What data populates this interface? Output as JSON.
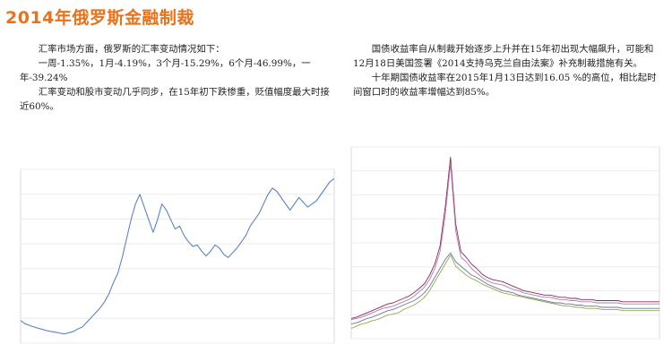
{
  "page": {
    "title": "2014年俄罗斯金融制裁"
  },
  "left_text": {
    "p1": "汇率市场方面，俄罗斯的汇率变动情况如下：",
    "p2": "一周-1.35%，1月-4.19%，3个月-15.29%，6个月-46.99%，一年-39.24%",
    "p3": "汇率变动和股市变动几乎同步，在15年初下跌惨重，贬值幅度最大时接近60%。"
  },
  "right_text": {
    "p1": "国债收益率自从制裁开始逐步上升并在15年初出现大幅飙升，可能和12月18日美国签署《2014支持乌克兰自由法案》补充制裁措施有关。",
    "p2": "十年期国债收益率在2015年1月13日达到16.05 %的高位，相比起时间窗口时的收益率增幅达到85%。"
  },
  "colors": {
    "title": "#e8731c",
    "fx_line": "#5b84c4",
    "bond_series_1": "#8b2a5a",
    "bond_series_2": "#b87ab0",
    "bond_series_3": "#9aa84a",
    "bond_series_4": "#6a7a9a"
  },
  "chart_data": [
    {
      "type": "line",
      "series": [
        {
          "values": [
            26,
            25,
            24.5,
            24,
            23.6,
            23.2,
            22.8,
            22.5,
            22.3,
            22.0,
            21.8,
            22.2,
            22.6,
            23.4,
            24.0,
            25.5,
            27.0,
            28.5,
            30.0,
            32.0,
            34.5,
            38.0,
            41.0,
            46.0,
            52.0,
            58.0,
            63.0,
            66.0,
            62.0,
            58.0,
            54.0,
            58.0,
            63.0,
            61.0,
            58.0,
            55.0,
            56.0,
            53.0,
            51.0,
            49.5,
            50.0,
            48.0,
            46.5,
            48.0,
            50.0,
            49.0,
            47.0,
            46.0,
            47.5,
            49.0,
            51.0,
            53.0,
            56.0,
            58.0,
            60.0,
            63.0,
            66.0,
            68.0,
            67.0,
            65.0,
            63.0,
            61.0,
            63.0,
            65.0,
            63.5,
            62.0,
            63.0,
            64.0,
            66.0,
            68.0,
            70.0,
            71.0
          ]
        }
      ]
    },
    {
      "type": "line",
      "series": [
        {
          "values": [
            7.5,
            7.6,
            7.8,
            8.0,
            8.2,
            8.4,
            8.6,
            8.8,
            8.9,
            9.1,
            9.3,
            9.5,
            9.8,
            10.2,
            10.6,
            11.4,
            12.4,
            14.0,
            17.5,
            22.0,
            16.0,
            13.5,
            13.0,
            12.4,
            12.0,
            11.5,
            11.2,
            11.0,
            10.9,
            10.8,
            10.6,
            10.4,
            10.2,
            10.0,
            9.9,
            9.8,
            9.7,
            9.6,
            9.6,
            9.5,
            9.4,
            9.4,
            9.3,
            9.3,
            9.2,
            9.2,
            9.2,
            9.1,
            9.1,
            9.1,
            9.1,
            9.1,
            9.0,
            9.0,
            9.0,
            9.0,
            9.0,
            9.0,
            9.0,
            9.0
          ]
        },
        {
          "values": [
            7.4,
            7.5,
            7.6,
            7.8,
            8.0,
            8.2,
            8.4,
            8.5,
            8.6,
            8.8,
            9.0,
            9.2,
            9.5,
            9.9,
            10.3,
            11.0,
            12.0,
            13.5,
            16.8,
            21.4,
            15.4,
            13.0,
            12.6,
            12.0,
            11.6,
            11.2,
            10.9,
            10.7,
            10.6,
            10.5,
            10.3,
            10.1,
            10.0,
            9.8,
            9.7,
            9.6,
            9.5,
            9.4,
            9.4,
            9.3,
            9.2,
            9.2,
            9.1,
            9.1,
            9.0,
            9.0,
            9.0,
            8.9,
            8.9,
            8.9,
            8.9,
            8.9,
            8.8,
            8.8,
            8.8,
            8.8,
            8.8,
            8.8,
            8.8,
            8.8
          ]
        },
        {
          "values": [
            6.6,
            6.8,
            7.0,
            7.1,
            7.3,
            7.4,
            7.6,
            7.8,
            7.9,
            8.0,
            8.3,
            8.5,
            8.7,
            9.0,
            9.4,
            10.0,
            10.8,
            11.6,
            12.4,
            13.2,
            12.2,
            11.8,
            11.4,
            11.1,
            10.9,
            10.6,
            10.4,
            10.2,
            10.0,
            9.8,
            9.7,
            9.6,
            9.5,
            9.4,
            9.3,
            9.2,
            9.1,
            9.0,
            8.9,
            8.8,
            8.7,
            8.6,
            8.6,
            8.5,
            8.5,
            8.4,
            8.4,
            8.4,
            8.3,
            8.3,
            8.3,
            8.3,
            8.2,
            8.2,
            8.2,
            8.2,
            8.2,
            8.2,
            8.2,
            8.2
          ]
        },
        {
          "values": [
            7.0,
            7.1,
            7.3,
            7.5,
            7.6,
            7.8,
            8.0,
            8.2,
            8.3,
            8.5,
            8.7,
            8.9,
            9.1,
            9.4,
            9.8,
            10.4,
            11.2,
            12.0,
            12.8,
            13.4,
            12.6,
            12.2,
            11.8,
            11.4,
            11.2,
            10.9,
            10.6,
            10.4,
            10.2,
            10.0,
            9.9,
            9.8,
            9.6,
            9.5,
            9.4,
            9.3,
            9.2,
            9.1,
            9.0,
            8.9,
            8.9,
            8.8,
            8.8,
            8.7,
            8.7,
            8.6,
            8.6,
            8.6,
            8.5,
            8.5,
            8.5,
            8.5,
            8.4,
            8.4,
            8.4,
            8.4,
            8.4,
            8.4,
            8.4,
            8.4
          ]
        }
      ]
    }
  ]
}
